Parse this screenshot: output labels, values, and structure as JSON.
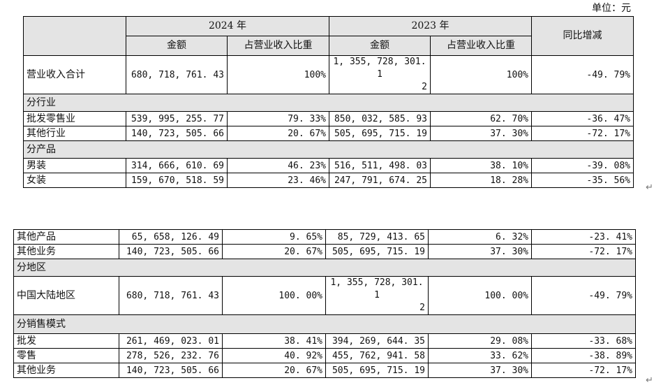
{
  "unit_label": "单位：元",
  "header": {
    "year_2024": "2024 年",
    "year_2023": "2023 年",
    "yoy": "同比增减",
    "amount": "金额",
    "ratio": "占营业收入比重"
  },
  "total": {
    "label": "营业收入合计",
    "amt2024": "680, 718, 761. 43",
    "pct2024": "100%",
    "amt2023_l1": "1, 355, 728, 301. 1",
    "amt2023_l2": "2",
    "pct2023": "100%",
    "yoy": "-49. 79%"
  },
  "section_industry": "分行业",
  "industry": [
    {
      "label": "批发零售业",
      "amt2024": "539, 995, 255. 77",
      "pct2024": "79. 33%",
      "amt2023": "850, 032, 585. 93",
      "pct2023": "62. 70%",
      "yoy": "-36. 47%"
    },
    {
      "label": "其他行业",
      "amt2024": "140, 723, 505. 66",
      "pct2024": "20. 67%",
      "amt2023": "505, 695, 715. 19",
      "pct2023": "37. 30%",
      "yoy": "-72. 17%"
    }
  ],
  "section_product": "分产品",
  "product": [
    {
      "label": "男装",
      "amt2024": "314, 666, 610. 69",
      "pct2024": "46. 23%",
      "amt2023": "516, 511, 498. 03",
      "pct2023": "38. 10%",
      "yoy": "-39. 08%"
    },
    {
      "label": "女装",
      "amt2024": "159, 670, 518. 59",
      "pct2024": "23. 46%",
      "amt2023": "247, 791, 674. 25",
      "pct2023": "18. 28%",
      "yoy": "-35. 56%"
    }
  ],
  "product_cont": [
    {
      "label": "其他产品",
      "amt2024": "65, 658, 126. 49",
      "pct2024": "9. 65%",
      "amt2023": "85, 729, 413. 65",
      "pct2023": "6. 32%",
      "yoy": "-23. 41%"
    },
    {
      "label": "其他业务",
      "amt2024": "140, 723, 505. 66",
      "pct2024": "20. 67%",
      "amt2023": "505, 695, 715. 19",
      "pct2023": "37. 30%",
      "yoy": "-72. 17%"
    }
  ],
  "section_region": "分地区",
  "region": {
    "label": "中国大陆地区",
    "amt2024": "680, 718, 761. 43",
    "pct2024": "100. 00%",
    "amt2023_l1": "1, 355, 728, 301. 1",
    "amt2023_l2": "2",
    "pct2023": "100. 00%",
    "yoy": "-49. 79%"
  },
  "section_sales": "分销售模式",
  "sales": [
    {
      "label": "批发",
      "amt2024": "261, 469, 023. 01",
      "pct2024": "38. 41%",
      "amt2023": "394, 269, 644. 35",
      "pct2023": "29. 08%",
      "yoy": "-33. 68%"
    },
    {
      "label": "零售",
      "amt2024": "278, 526, 232. 76",
      "pct2024": "40. 92%",
      "amt2023": "455, 762, 941. 58",
      "pct2023": "33. 62%",
      "yoy": "-38. 89%"
    },
    {
      "label": "其他业务",
      "amt2024": "140, 723, 505. 66",
      "pct2024": "20. 67%",
      "amt2023": "505, 695, 715. 19",
      "pct2023": "37. 30%",
      "yoy": "-72. 17%"
    }
  ],
  "return_mark": "↵"
}
